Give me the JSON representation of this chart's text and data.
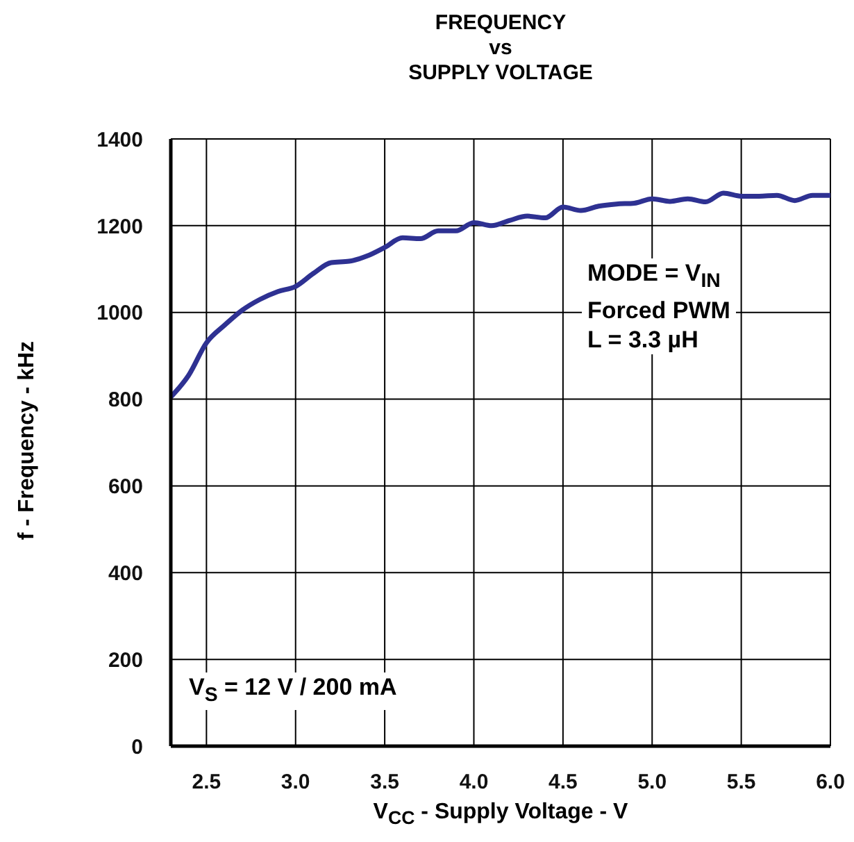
{
  "chart_data": {
    "type": "line",
    "title": "FREQUENCY\nvs\nSUPPLY VOLTAGE",
    "xlabel": "V$_{CC}$ - Supply Voltage - V",
    "ylabel": "f - Frequency - kHz",
    "annotations": [
      "MODE = V$_{IN}$\nForced PWM\nL = 3.3 µH",
      "V$_{S}$ = 12 V / 200 mA"
    ],
    "x": [
      2.3,
      2.4,
      2.5,
      2.6,
      2.7,
      2.8,
      2.9,
      3.0,
      3.1,
      3.2,
      3.3,
      3.4,
      3.5,
      3.6,
      3.7,
      3.8,
      3.9,
      4.0,
      4.1,
      4.2,
      4.3,
      4.4,
      4.5,
      4.6,
      4.7,
      4.8,
      4.9,
      5.0,
      5.1,
      5.2,
      5.3,
      5.4,
      5.5,
      5.6,
      5.7,
      5.8,
      5.9,
      6.0
    ],
    "series": [
      {
        "color": "#2e3192",
        "values": [
          805,
          855,
          930,
          970,
          1005,
          1030,
          1048,
          1060,
          1090,
          1115,
          1118,
          1130,
          1150,
          1172,
          1170,
          1188,
          1188,
          1207,
          1200,
          1212,
          1222,
          1218,
          1243,
          1235,
          1245,
          1250,
          1252,
          1262,
          1256,
          1262,
          1255,
          1275,
          1268,
          1268,
          1270,
          1258,
          1270,
          1270
        ]
      }
    ],
    "xlim": [
      2.3,
      6.0
    ],
    "xticks": [
      2.5,
      {
        "value": 3.0,
        "label": "3.0"
      },
      3.5,
      {
        "value": 4.0,
        "label": "4.0"
      },
      4.5,
      {
        "value": 5.0,
        "label": "5.0"
      },
      5.5,
      {
        "value": 6.0,
        "label": "6.0"
      }
    ],
    "ylim": [
      0,
      1400
    ],
    "yticks": [
      0,
      200,
      400,
      600,
      800,
      1000,
      1200,
      1400
    ],
    "grid": true,
    "marker": "none",
    "line_style": "solid"
  }
}
